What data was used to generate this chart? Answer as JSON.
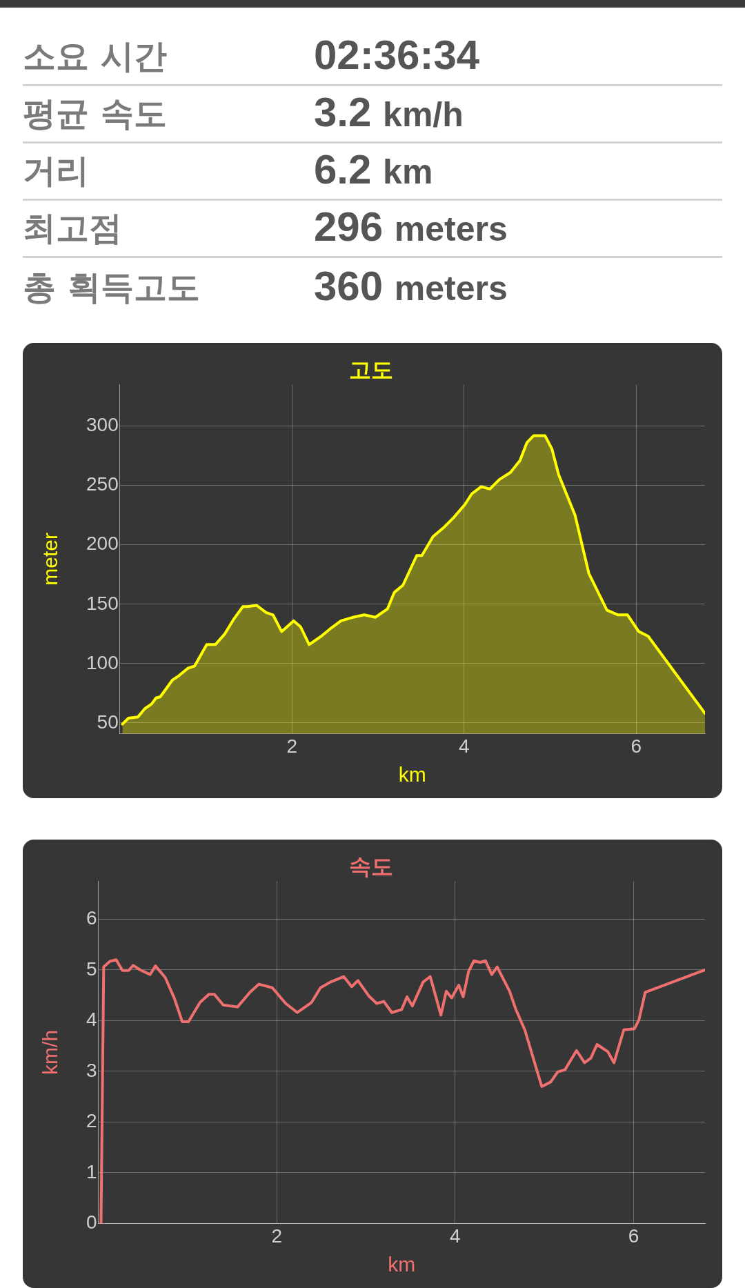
{
  "chart_data": [
    {
      "type": "other",
      "annotations": [
        "소요 시간",
        "02:36:34",
        "평균 속도",
        "3.2 km/h",
        "거리",
        "6.2 km",
        "최고점",
        "296 meters",
        "총 획득고도",
        "360 meters"
      ]
    },
    {
      "type": "area",
      "title": "고도",
      "xlabel": "km",
      "ylabel": "meter",
      "color": "#ffff00",
      "legend": false,
      "grid": true,
      "marker": "none",
      "xlim": [
        0,
        6.8
      ],
      "xticks": [
        2,
        4,
        6
      ],
      "ylim": [
        41,
        335
      ],
      "yticks": [
        50,
        100,
        150,
        200,
        250,
        300
      ],
      "x": [
        0.03,
        0.1,
        0.21,
        0.29,
        0.37,
        0.42,
        0.47,
        0.53,
        0.61,
        0.69,
        0.79,
        0.87,
        1.01,
        1.11,
        1.22,
        1.32,
        1.43,
        1.48,
        1.59,
        1.7,
        1.78,
        1.88,
        2.02,
        2.1,
        2.2,
        2.34,
        2.44,
        2.57,
        2.71,
        2.84,
        2.97,
        3.11,
        3.19,
        3.29,
        3.45,
        3.51,
        3.64,
        3.77,
        3.88,
        4.01,
        4.09,
        4.2,
        4.3,
        4.41,
        4.54,
        4.65,
        4.73,
        4.81,
        4.94,
        5.02,
        5.1,
        5.29,
        5.45,
        5.66,
        5.79,
        5.9,
        6.03,
        6.14,
        6.8
      ],
      "values": [
        49,
        54,
        55,
        62,
        66,
        71,
        72,
        78,
        86,
        90,
        96,
        98,
        116,
        116,
        125,
        137,
        148,
        148,
        149,
        143,
        141,
        127,
        136,
        131,
        116,
        123,
        129,
        136,
        139,
        141,
        139,
        146,
        160,
        166,
        191,
        191,
        207,
        215,
        223,
        234,
        243,
        249,
        247,
        255,
        261,
        271,
        286,
        292,
        292,
        281,
        259,
        225,
        176,
        145,
        141,
        141,
        127,
        123,
        58
      ]
    },
    {
      "type": "line",
      "title": "속도",
      "xlabel": "km",
      "ylabel": "km/h",
      "color": "#f07070",
      "legend": false,
      "grid": true,
      "marker": "none",
      "xlim": [
        0,
        6.8
      ],
      "xticks": [
        2,
        4,
        6
      ],
      "ylim": [
        0,
        6.75
      ],
      "yticks": [
        0,
        1,
        2,
        3,
        4,
        5,
        6
      ],
      "x": [
        0.03,
        0.06,
        0.13,
        0.2,
        0.27,
        0.34,
        0.39,
        0.47,
        0.58,
        0.64,
        0.75,
        0.85,
        0.94,
        1.01,
        1.14,
        1.24,
        1.3,
        1.4,
        1.56,
        1.7,
        1.8,
        1.95,
        2.1,
        2.23,
        2.39,
        2.49,
        2.6,
        2.75,
        2.84,
        2.91,
        3.03,
        3.12,
        3.2,
        3.29,
        3.4,
        3.46,
        3.52,
        3.64,
        3.72,
        3.84,
        3.9,
        3.96,
        4.04,
        4.09,
        4.15,
        4.21,
        4.28,
        4.34,
        4.41,
        4.47,
        4.61,
        4.68,
        4.78,
        4.97,
        5.07,
        5.15,
        5.23,
        5.36,
        5.45,
        5.52,
        5.59,
        5.71,
        5.78,
        5.89,
        6.01,
        6.06,
        6.13,
        6.8
      ],
      "values": [
        0,
        5.06,
        5.17,
        5.2,
        4.99,
        4.99,
        5.09,
        5.0,
        4.91,
        5.08,
        4.85,
        4.45,
        3.98,
        3.98,
        4.36,
        4.52,
        4.52,
        4.31,
        4.27,
        4.56,
        4.72,
        4.65,
        4.34,
        4.16,
        4.36,
        4.65,
        4.76,
        4.87,
        4.67,
        4.79,
        4.49,
        4.34,
        4.38,
        4.16,
        4.22,
        4.47,
        4.29,
        4.76,
        4.87,
        4.11,
        4.58,
        4.45,
        4.7,
        4.47,
        4.97,
        5.18,
        5.15,
        5.18,
        4.91,
        5.06,
        4.58,
        4.22,
        3.82,
        2.7,
        2.79,
        2.99,
        3.03,
        3.41,
        3.17,
        3.26,
        3.53,
        3.39,
        3.17,
        3.82,
        3.84,
        4.02,
        4.56,
        5.0
      ]
    }
  ]
}
